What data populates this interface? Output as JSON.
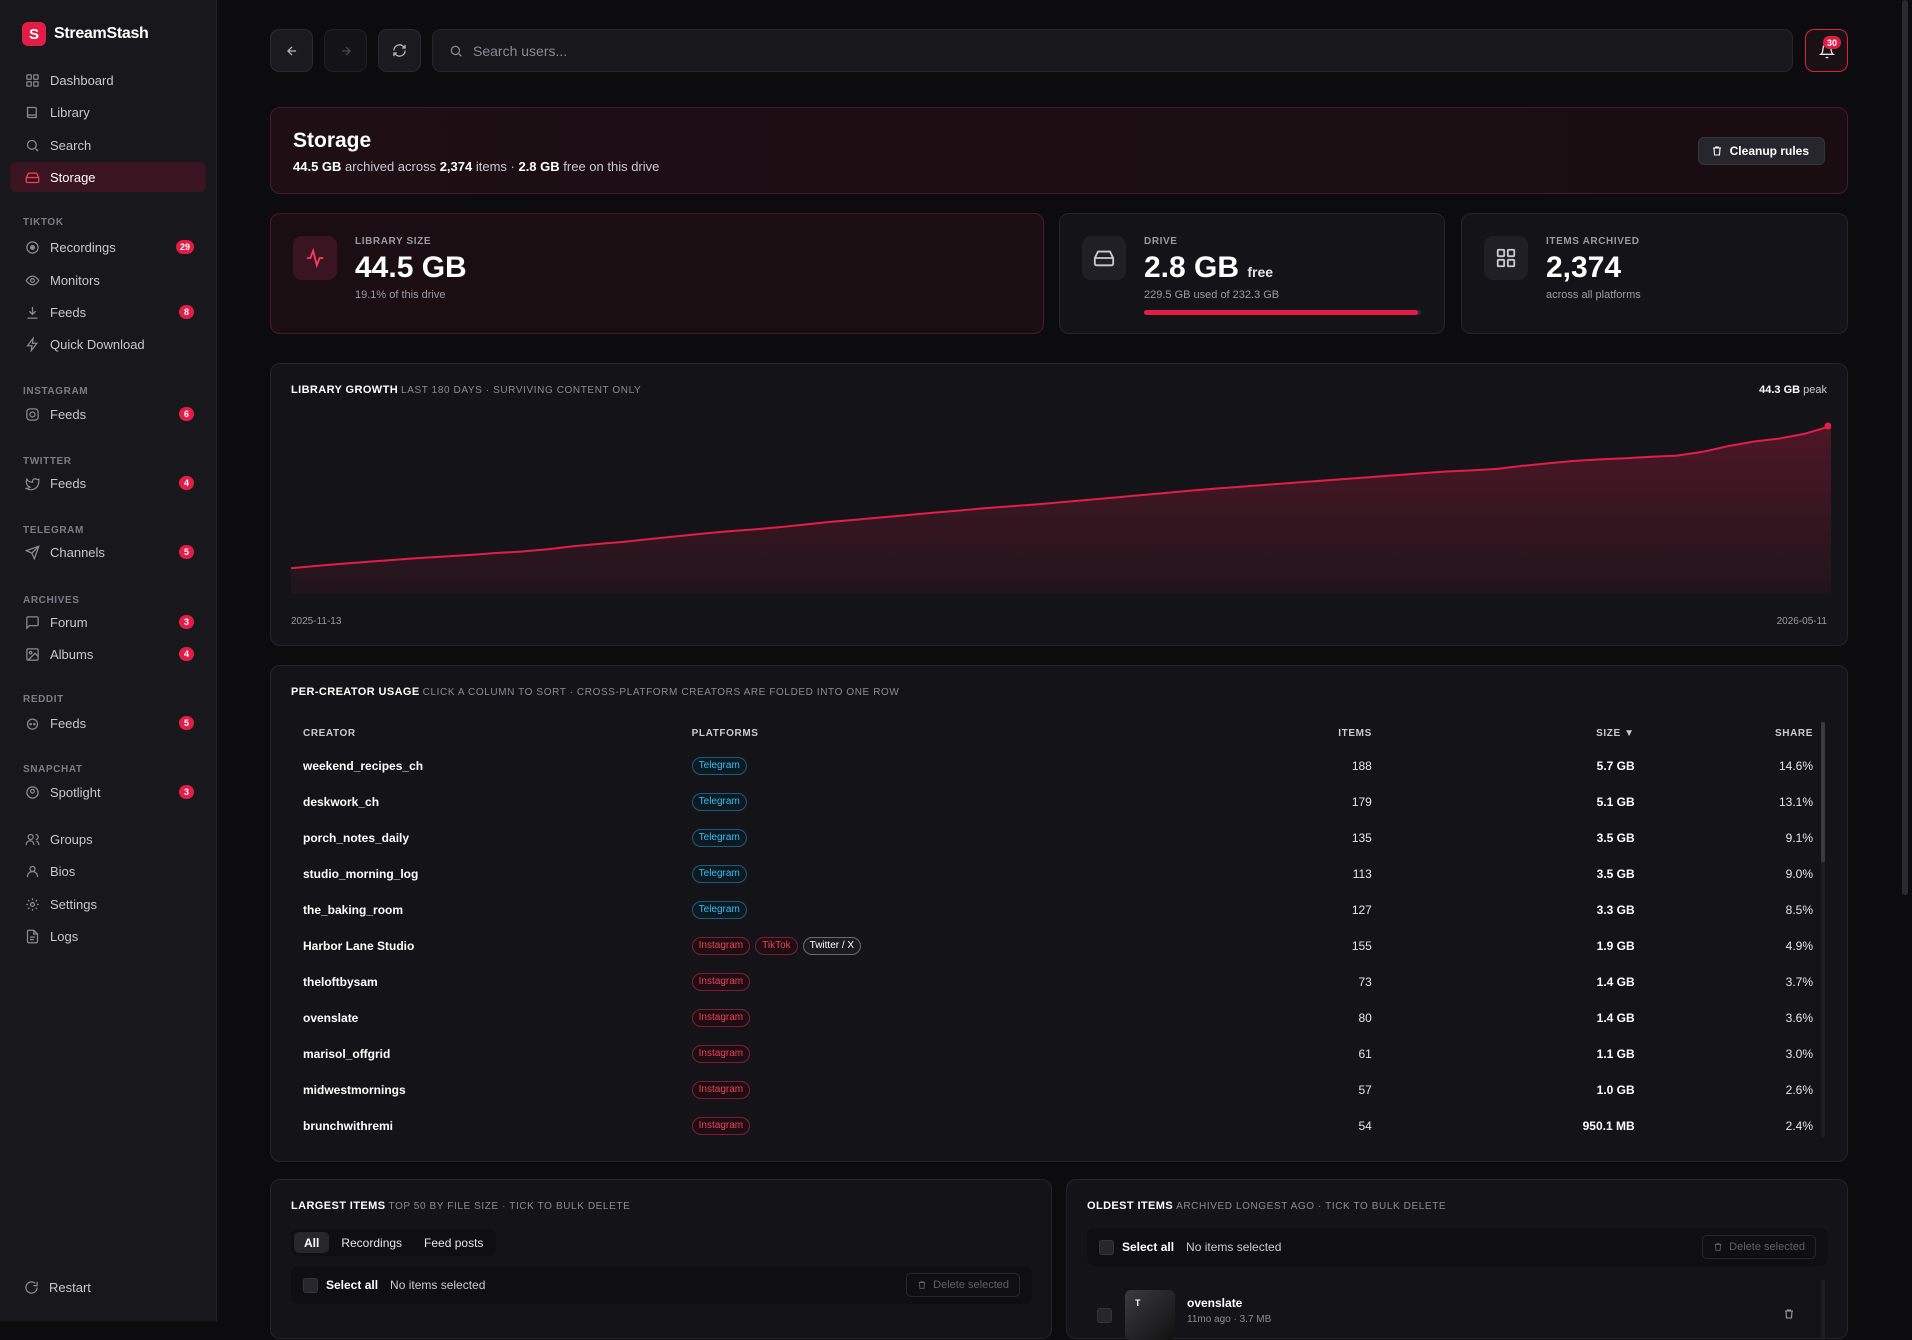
{
  "app": {
    "name": "StreamStash"
  },
  "sidebar": {
    "main": [
      {
        "label": "Dashboard",
        "icon": "grid-icon"
      },
      {
        "label": "Library",
        "icon": "book-icon"
      },
      {
        "label": "Search",
        "icon": "search-icon"
      },
      {
        "label": "Storage",
        "icon": "drive-icon",
        "active": true
      }
    ],
    "sections": [
      {
        "title": "TIKTOK",
        "items": [
          {
            "label": "Recordings",
            "badge": "29",
            "icon": "record-icon"
          },
          {
            "label": "Monitors",
            "icon": "eye-icon"
          },
          {
            "label": "Feeds",
            "badge": "8",
            "icon": "download-icon"
          },
          {
            "label": "Quick Download",
            "icon": "bolt-icon"
          }
        ]
      },
      {
        "title": "INSTAGRAM",
        "items": [
          {
            "label": "Feeds",
            "badge": "6",
            "icon": "instagram-icon"
          }
        ]
      },
      {
        "title": "TWITTER",
        "items": [
          {
            "label": "Feeds",
            "badge": "4",
            "icon": "twitter-icon"
          }
        ]
      },
      {
        "title": "TELEGRAM",
        "items": [
          {
            "label": "Channels",
            "badge": "5",
            "icon": "send-icon"
          }
        ]
      },
      {
        "title": "ARCHIVES",
        "items": [
          {
            "label": "Forum",
            "badge": "3",
            "icon": "chat-icon"
          },
          {
            "label": "Albums",
            "badge": "4",
            "icon": "image-icon"
          }
        ]
      },
      {
        "title": "REDDIT",
        "items": [
          {
            "label": "Feeds",
            "badge": "5",
            "icon": "reddit-icon"
          }
        ]
      },
      {
        "title": "SNAPCHAT",
        "items": [
          {
            "label": "Spotlight",
            "badge": "3",
            "icon": "spotlight-icon"
          }
        ]
      }
    ],
    "footer_items": [
      {
        "label": "Groups",
        "icon": "users-icon"
      },
      {
        "label": "Bios",
        "icon": "user-icon"
      },
      {
        "label": "Settings",
        "icon": "gear-icon"
      },
      {
        "label": "Logs",
        "icon": "file-icon"
      }
    ],
    "restart_label": "Restart"
  },
  "topbar": {
    "search_placeholder": "Search users...",
    "notifications_count": "30"
  },
  "header": {
    "title": "Storage",
    "archived_size": "44.5 GB",
    "archived_text": " archived across ",
    "items_count": "2,374",
    "items_text": " items · ",
    "free_size": "2.8 GB",
    "free_text": " free on this drive",
    "cleanup_label": "Cleanup rules"
  },
  "stats": {
    "library": {
      "label": "LIBRARY SIZE",
      "value": "44.5 GB",
      "sub": "19.1% of this drive"
    },
    "drive": {
      "label": "DRIVE",
      "value": "2.8 GB",
      "value_suffix": "free",
      "sub": "229.5 GB used of 232.3 GB",
      "used_fraction": 0.988
    },
    "items": {
      "label": "ITEMS ARCHIVED",
      "value": "2,374",
      "sub": "across all platforms"
    }
  },
  "growth": {
    "title": "LIBRARY GROWTH",
    "subtitle": "LAST 180 DAYS · SURVIVING CONTENT ONLY",
    "peak_value": "44.3 GB",
    "peak_label": "peak",
    "start_date": "2025-11-13",
    "end_date": "2026-05-11",
    "accent": "#e11d48"
  },
  "chart_data": {
    "type": "area",
    "x_start": "2025-11-13",
    "x_end": "2026-05-11",
    "ylim": [
      0,
      44.3
    ],
    "values": [
      6.8,
      7.4,
      8.0,
      8.5,
      9.0,
      9.5,
      9.9,
      10.3,
      10.8,
      11.2,
      11.8,
      12.6,
      13.2,
      13.8,
      14.5,
      15.2,
      15.9,
      16.5,
      17.0,
      17.6,
      18.3,
      19.0,
      19.6,
      20.2,
      20.8,
      21.4,
      22.0,
      22.6,
      23.1,
      23.6,
      24.2,
      24.8,
      25.4,
      26.0,
      26.6,
      27.2,
      27.8,
      28.3,
      28.8,
      29.3,
      29.8,
      30.3,
      30.8,
      31.3,
      31.8,
      32.3,
      32.6,
      33.0,
      33.8,
      34.5,
      35.1,
      35.5,
      35.8,
      36.2,
      36.5,
      37.5,
      39.0,
      40.2,
      41.0,
      42.3,
      44.3
    ]
  },
  "creators": {
    "title": "PER-CREATOR USAGE",
    "subtitle": "CLICK A COLUMN TO SORT · CROSS-PLATFORM CREATORS ARE FOLDED INTO ONE ROW",
    "columns": {
      "creator": "CREATOR",
      "platforms": "PLATFORMS",
      "items": "ITEMS",
      "size": "SIZE ▼",
      "share": "SHARE"
    },
    "rows": [
      {
        "creator": "weekend_recipes_ch",
        "platforms": [
          {
            "name": "Telegram",
            "kind": "telegram"
          }
        ],
        "items": "188",
        "size": "5.7 GB",
        "share": "14.6%"
      },
      {
        "creator": "deskwork_ch",
        "platforms": [
          {
            "name": "Telegram",
            "kind": "telegram"
          }
        ],
        "items": "179",
        "size": "5.1 GB",
        "share": "13.1%"
      },
      {
        "creator": "porch_notes_daily",
        "platforms": [
          {
            "name": "Telegram",
            "kind": "telegram"
          }
        ],
        "items": "135",
        "size": "3.5 GB",
        "share": "9.1%"
      },
      {
        "creator": "studio_morning_log",
        "platforms": [
          {
            "name": "Telegram",
            "kind": "telegram"
          }
        ],
        "items": "113",
        "size": "3.5 GB",
        "share": "9.0%"
      },
      {
        "creator": "the_baking_room",
        "platforms": [
          {
            "name": "Telegram",
            "kind": "telegram"
          }
        ],
        "items": "127",
        "size": "3.3 GB",
        "share": "8.5%"
      },
      {
        "creator": "Harbor Lane Studio",
        "platforms": [
          {
            "name": "Instagram",
            "kind": "instagram"
          },
          {
            "name": "TikTok",
            "kind": "tiktok"
          },
          {
            "name": "Twitter / X",
            "kind": "twitter"
          }
        ],
        "items": "155",
        "size": "1.9 GB",
        "share": "4.9%"
      },
      {
        "creator": "theloftbysam",
        "platforms": [
          {
            "name": "Instagram",
            "kind": "instagram"
          }
        ],
        "items": "73",
        "size": "1.4 GB",
        "share": "3.7%"
      },
      {
        "creator": "ovenslate",
        "platforms": [
          {
            "name": "Instagram",
            "kind": "instagram"
          }
        ],
        "items": "80",
        "size": "1.4 GB",
        "share": "3.6%"
      },
      {
        "creator": "marisol_offgrid",
        "platforms": [
          {
            "name": "Instagram",
            "kind": "instagram"
          }
        ],
        "items": "61",
        "size": "1.1 GB",
        "share": "3.0%"
      },
      {
        "creator": "midwestmornings",
        "platforms": [
          {
            "name": "Instagram",
            "kind": "instagram"
          }
        ],
        "items": "57",
        "size": "1.0 GB",
        "share": "2.6%"
      },
      {
        "creator": "brunchwithremi",
        "platforms": [
          {
            "name": "Instagram",
            "kind": "instagram"
          }
        ],
        "items": "54",
        "size": "950.1 MB",
        "share": "2.4%"
      }
    ]
  },
  "largest": {
    "title": "LARGEST ITEMS",
    "subtitle": "TOP 50 BY FILE SIZE · TICK TO BULK DELETE",
    "tabs": [
      "All",
      "Recordings",
      "Feed posts"
    ],
    "select_all": "Select all",
    "selection_status": "No items selected",
    "delete_label": "Delete selected"
  },
  "oldest": {
    "title": "OLDEST ITEMS",
    "subtitle": "ARCHIVED LONGEST AGO · TICK TO BULK DELETE",
    "select_all": "Select all",
    "selection_status": "No items selected",
    "delete_label": "Delete selected",
    "first_item": {
      "name": "ovenslate",
      "meta": "11mo ago · 3.7 MB",
      "thumb": "T"
    }
  }
}
